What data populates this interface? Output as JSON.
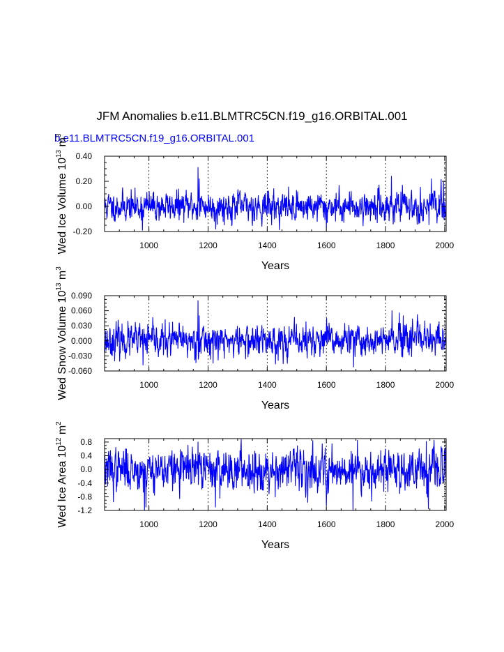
{
  "title": "JFM Anomalies b.e11.BLMTRC5CN.f19_g16.ORBITAL.001",
  "subtitle": "b.e11.BLMTRC5CN.f19_g16.ORBITAL.001",
  "line_color": "#0000ff",
  "chart_data": [
    {
      "type": "line",
      "ylabel": "Wed Ice Volume 10",
      "ylabel_exp": "13",
      "ylabel_unit": " m",
      "ylabel_unit_exp": "3",
      "xlabel": "Years",
      "xlim": [
        850,
        2005
      ],
      "ylim": [
        -0.2,
        0.4
      ],
      "yticks": [
        -0.2,
        0.0,
        0.2,
        0.4
      ],
      "yticklabels": [
        "-0.20",
        "0.00",
        "0.20",
        "0.40"
      ],
      "xticks": [
        1000,
        1200,
        1400,
        1600,
        1800,
        2000
      ],
      "xticklabels": [
        "1000",
        "1200",
        "1400",
        "1600",
        "1800",
        "2000"
      ],
      "std": 0.055,
      "seed": 11,
      "features": [
        {
          "year": 1166,
          "value": 0.31
        },
        {
          "year": 1170,
          "value": 0.22
        },
        {
          "year": 1820,
          "value": 0.24
        },
        {
          "year": 1955,
          "value": 0.22
        },
        {
          "year": 1996,
          "value": 0.2
        },
        {
          "year": 1600,
          "value": -0.17
        },
        {
          "year": 1226,
          "value": -0.18
        },
        {
          "year": 978,
          "value": -0.19
        }
      ],
      "series": [
        {
          "name": "Wed Ice Volume"
        }
      ]
    },
    {
      "type": "line",
      "ylabel": "Wed Snow Volume 10",
      "ylabel_exp": "13",
      "ylabel_unit": " m",
      "ylabel_unit_exp": "3",
      "xlabel": "Years",
      "xlim": [
        850,
        2005
      ],
      "ylim": [
        -0.06,
        0.09
      ],
      "yticks": [
        -0.06,
        -0.03,
        0.0,
        0.03,
        0.06,
        0.09
      ],
      "yticklabels": [
        "-0.060",
        "-0.030",
        "0.000",
        "0.030",
        "0.060",
        "0.090"
      ],
      "xticks": [
        1000,
        1200,
        1400,
        1600,
        1800,
        2000
      ],
      "xticklabels": [
        "1000",
        "1200",
        "1400",
        "1600",
        "1800",
        "2000"
      ],
      "std": 0.015,
      "seed": 23,
      "features": [
        {
          "year": 1166,
          "value": 0.08
        },
        {
          "year": 1170,
          "value": 0.05
        },
        {
          "year": 1822,
          "value": 0.06
        },
        {
          "year": 1860,
          "value": 0.05
        },
        {
          "year": 1692,
          "value": -0.052
        },
        {
          "year": 980,
          "value": -0.048
        }
      ],
      "series": [
        {
          "name": "Wed Snow Volume"
        }
      ]
    },
    {
      "type": "line",
      "ylabel": "Wed Ice Area 10",
      "ylabel_exp": "12",
      "ylabel_unit": " m",
      "ylabel_unit_exp": "2",
      "xlabel": "Years",
      "xlim": [
        850,
        2005
      ],
      "ylim": [
        -1.2,
        0.9
      ],
      "yticks": [
        -1.2,
        -0.8,
        -0.4,
        0.0,
        0.4,
        0.8
      ],
      "yticklabels": [
        "-1.2",
        "-0.8",
        "-0.4",
        "0.0",
        "0.4",
        "0.8"
      ],
      "xticks": [
        1000,
        1200,
        1400,
        1600,
        1800,
        2000
      ],
      "xticklabels": [
        "1000",
        "1200",
        "1400",
        "1600",
        "1800",
        "2000"
      ],
      "std": 0.28,
      "seed": 37,
      "features": [
        {
          "year": 1166,
          "value": 0.8
        },
        {
          "year": 1705,
          "value": 0.85
        },
        {
          "year": 1938,
          "value": 0.82
        },
        {
          "year": 1690,
          "value": -1.2
        },
        {
          "year": 1945,
          "value": -1.15
        },
        {
          "year": 1600,
          "value": -1.05
        },
        {
          "year": 1225,
          "value": -1.1
        },
        {
          "year": 985,
          "value": -1.2
        },
        {
          "year": 990,
          "value": -1.1
        },
        {
          "year": 880,
          "value": -0.95
        }
      ],
      "series": [
        {
          "name": "Wed Ice Area"
        }
      ]
    }
  ]
}
